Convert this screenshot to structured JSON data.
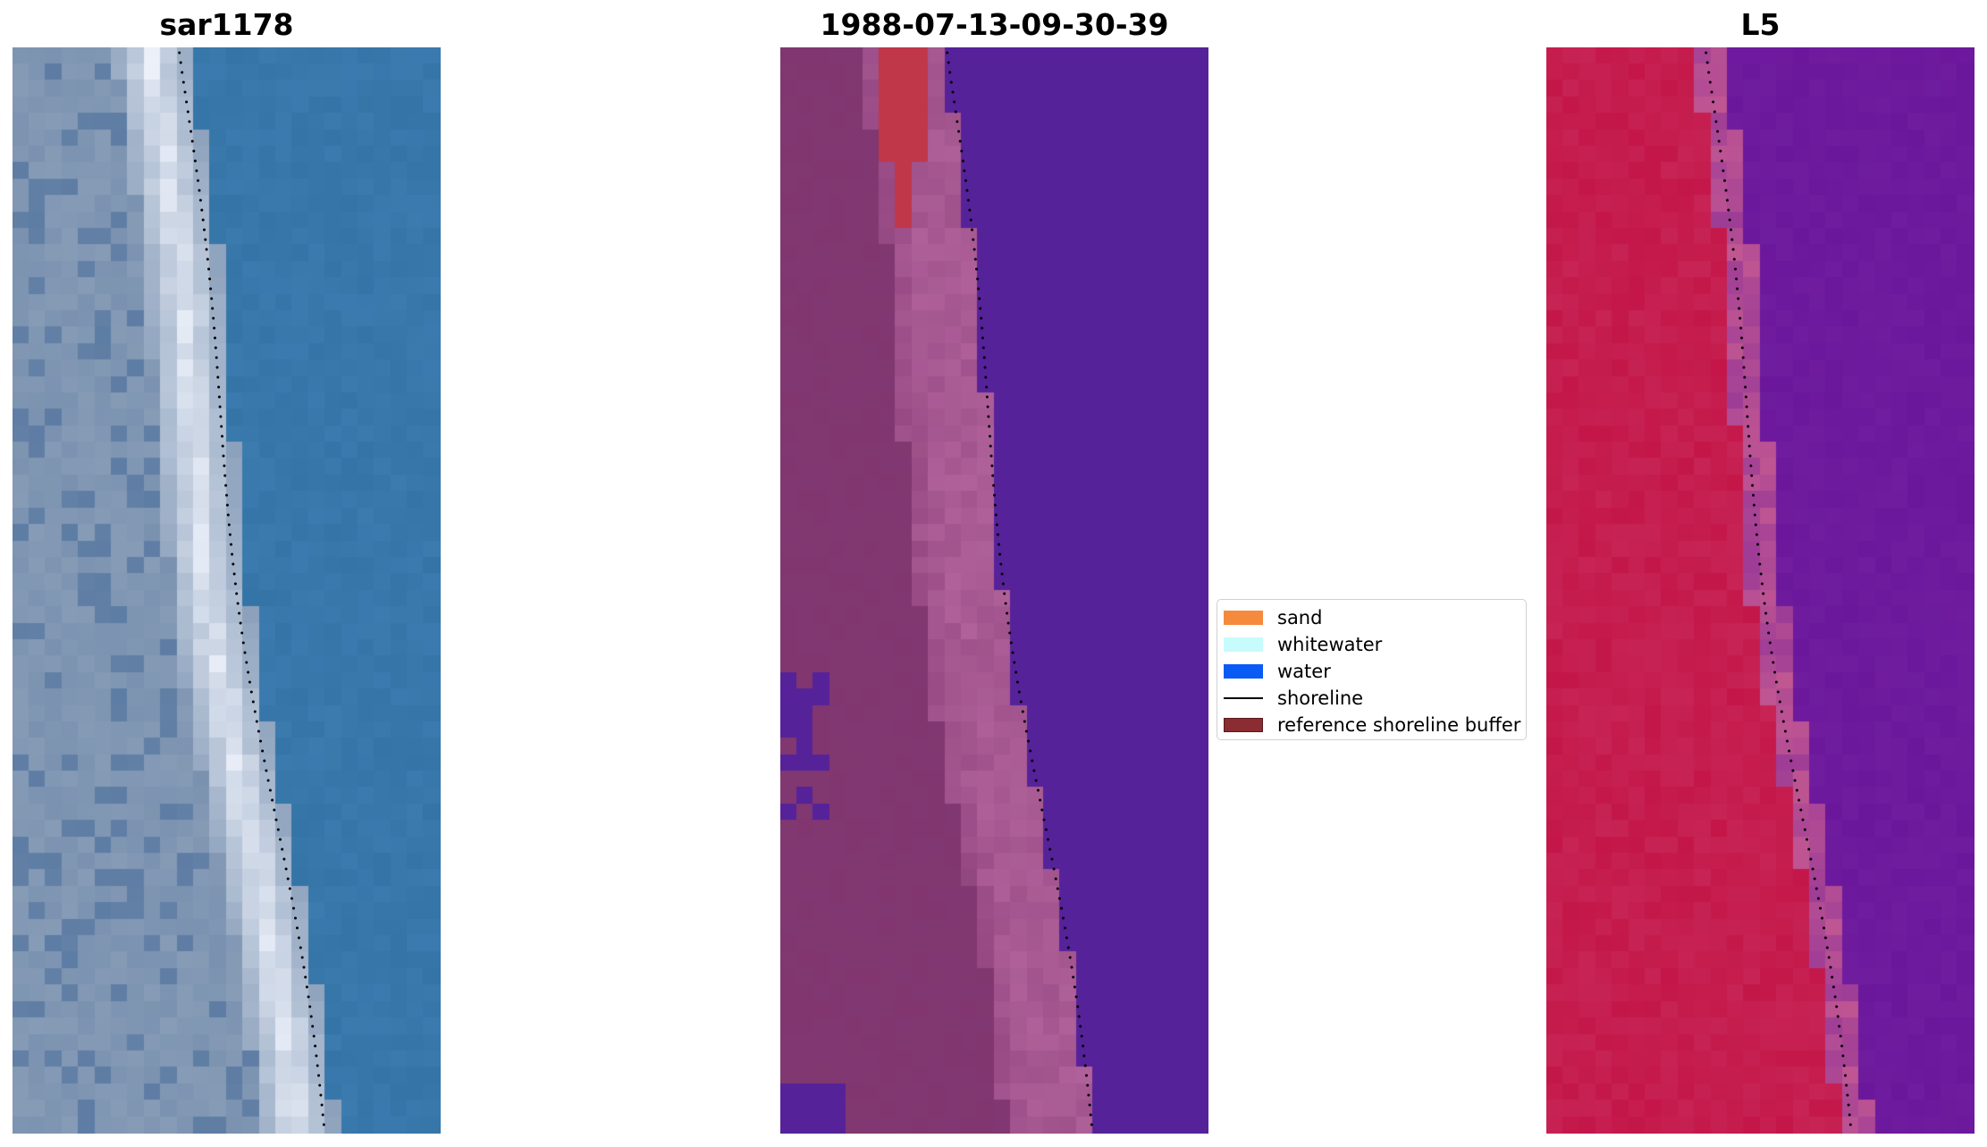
{
  "panels": [
    {
      "title": "sar1178",
      "kind": "rgb"
    },
    {
      "title": "1988-07-13-09-30-39",
      "kind": "classified"
    },
    {
      "title": "L5",
      "kind": "false-color"
    }
  ],
  "legend": {
    "items": [
      {
        "label": "sand",
        "color": "#f58a3c"
      },
      {
        "label": "whitewater",
        "color": "#c8fbfb"
      },
      {
        "label": "water",
        "color": "#0a5bf5"
      },
      {
        "label": "shoreline",
        "color": "#000000"
      },
      {
        "label": "reference shoreline buffer",
        "color": "#8b2b32"
      }
    ]
  },
  "colors": {
    "water_rgb": "#3574a6",
    "whitewater_rgb": "#eef2fb",
    "land_rgb": "#7a92b0",
    "class_water": "#55229a",
    "class_land": "#813670",
    "class_buffer_pink": "#b0619a",
    "class_red": "#c0374a",
    "fc_land": "#c41648",
    "fc_water": "#6b179c",
    "fc_transition": "#c05692"
  }
}
